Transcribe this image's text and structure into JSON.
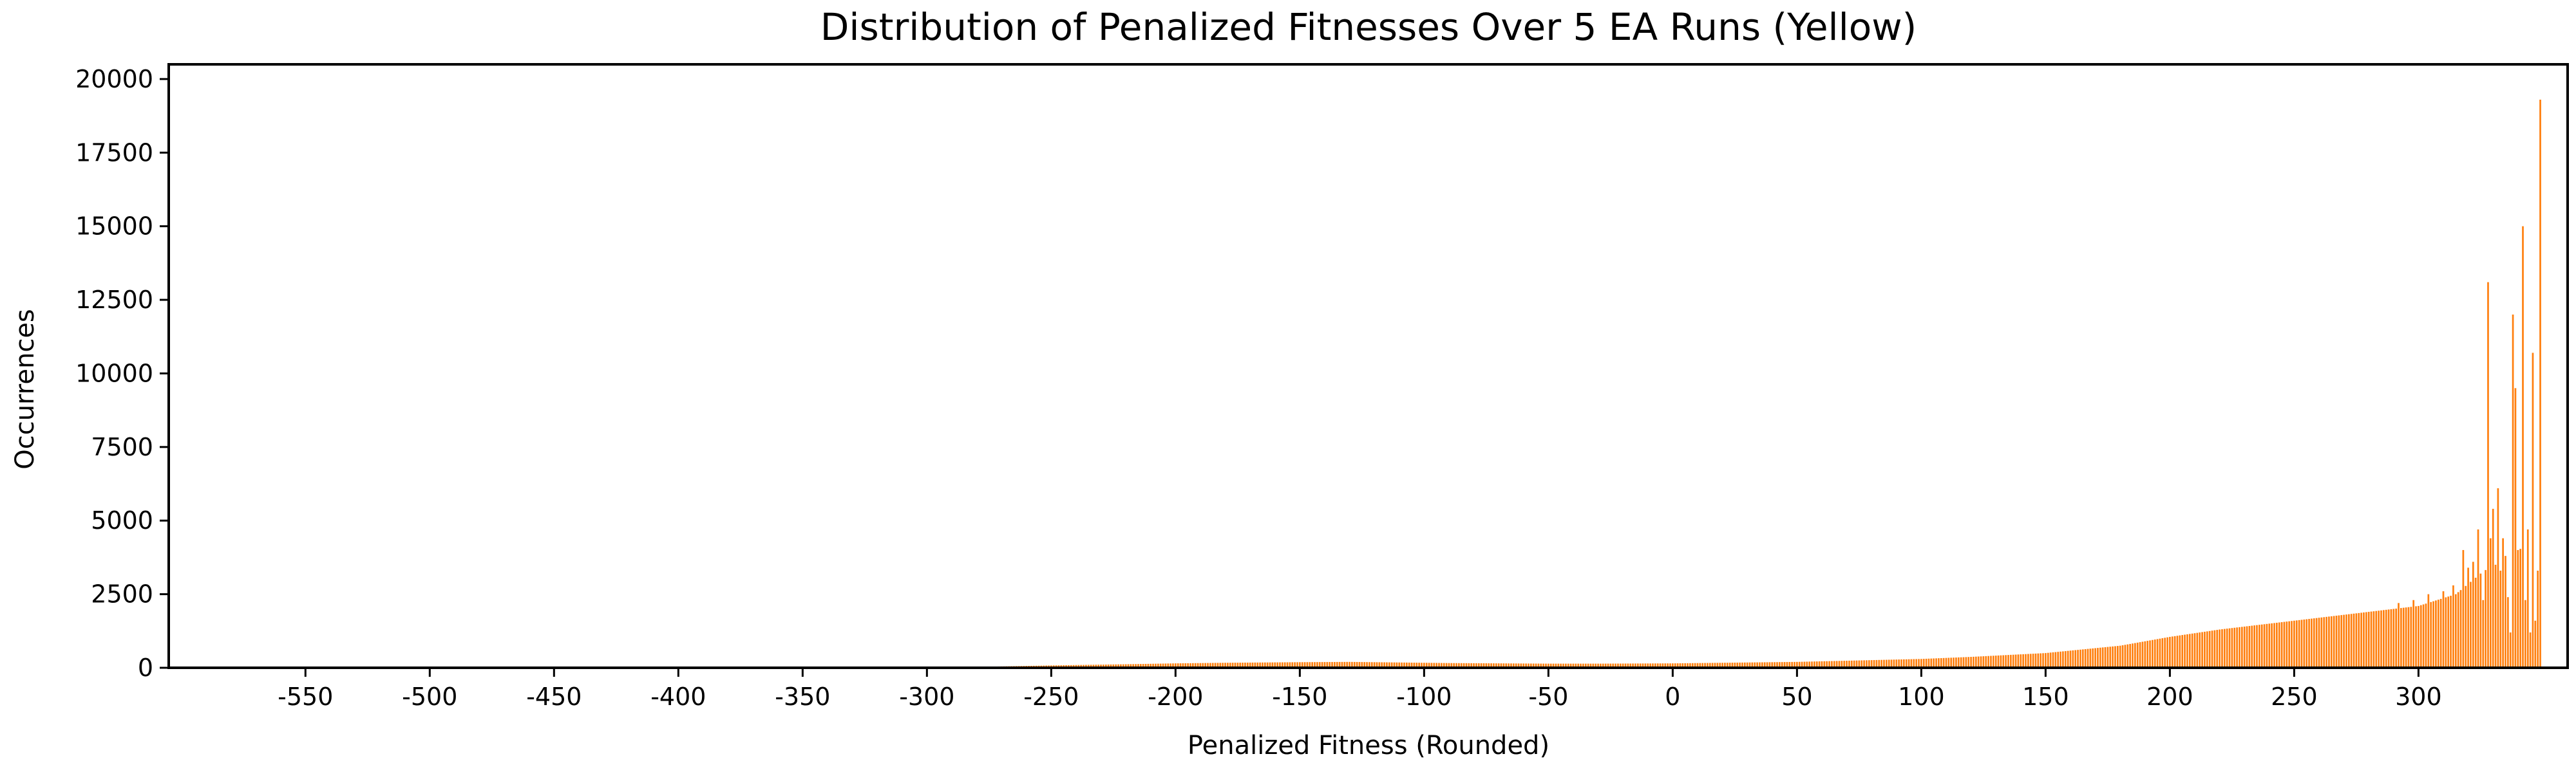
{
  "chart_data": {
    "type": "bar",
    "title": "Distribution of Penalized Fitnesses Over 5 EA Runs (Yellow)",
    "xlabel": "Penalized Fitness (Rounded)",
    "ylabel": "Occurrences",
    "xlim": [
      -605,
      360
    ],
    "ylim": [
      0,
      20500
    ],
    "x_ticks": [
      -550,
      -500,
      -450,
      -400,
      -350,
      -300,
      -250,
      -200,
      -150,
      -100,
      -50,
      0,
      50,
      100,
      150,
      200,
      250,
      300
    ],
    "x_tick_labels": [
      "-550",
      "-500",
      "-450",
      "-400",
      "-350",
      "-300",
      "-250",
      "-200",
      "-150",
      "-100",
      "-50",
      "0",
      "50",
      "100",
      "150",
      "200",
      "250",
      "300"
    ],
    "y_ticks": [
      0,
      2500,
      5000,
      7500,
      10000,
      12500,
      15000,
      17500,
      20000
    ],
    "y_tick_labels": [
      "0",
      "2500",
      "5000",
      "7500",
      "10000",
      "12500",
      "15000",
      "17500",
      "20000"
    ],
    "bar_color": "#ff7f0e",
    "bin_width": 1,
    "series": [
      {
        "values_profile": [
          [
            -300,
            0
          ],
          [
            -280,
            30
          ],
          [
            -250,
            80
          ],
          [
            -220,
            120
          ],
          [
            -200,
            150
          ],
          [
            -180,
            170
          ],
          [
            -150,
            190
          ],
          [
            -130,
            200
          ],
          [
            -110,
            180
          ],
          [
            -90,
            160
          ],
          [
            -70,
            150
          ],
          [
            -50,
            140
          ],
          [
            -30,
            140
          ],
          [
            0,
            150
          ],
          [
            20,
            170
          ],
          [
            50,
            200
          ],
          [
            80,
            260
          ],
          [
            100,
            300
          ],
          [
            120,
            370
          ],
          [
            150,
            500
          ],
          [
            180,
            750
          ],
          [
            200,
            1050
          ],
          [
            220,
            1300
          ],
          [
            240,
            1500
          ],
          [
            260,
            1700
          ],
          [
            280,
            1900
          ],
          [
            300,
            2100
          ],
          [
            315,
            2500
          ],
          [
            325,
            3200
          ],
          [
            335,
            3800
          ],
          [
            345,
            4200
          ],
          [
            349,
            3000
          ]
        ],
        "peaks": [
          [
            292,
            2200
          ],
          [
            298,
            2300
          ],
          [
            304,
            2500
          ],
          [
            310,
            2600
          ],
          [
            314,
            2800
          ],
          [
            318,
            4000
          ],
          [
            320,
            3400
          ],
          [
            322,
            3600
          ],
          [
            324,
            4700
          ],
          [
            326,
            2300
          ],
          [
            328,
            13100
          ],
          [
            329,
            4400
          ],
          [
            330,
            5400
          ],
          [
            331,
            3500
          ],
          [
            332,
            6100
          ],
          [
            333,
            3300
          ],
          [
            334,
            4400
          ],
          [
            335,
            3800
          ],
          [
            336,
            2400
          ],
          [
            337,
            1200
          ],
          [
            338,
            12000
          ],
          [
            339,
            9500
          ],
          [
            340,
            4000
          ],
          [
            342,
            15000
          ],
          [
            343,
            2300
          ],
          [
            344,
            4700
          ],
          [
            345,
            1200
          ],
          [
            346,
            10700
          ],
          [
            347,
            1600
          ],
          [
            349,
            19300
          ]
        ]
      }
    ]
  }
}
